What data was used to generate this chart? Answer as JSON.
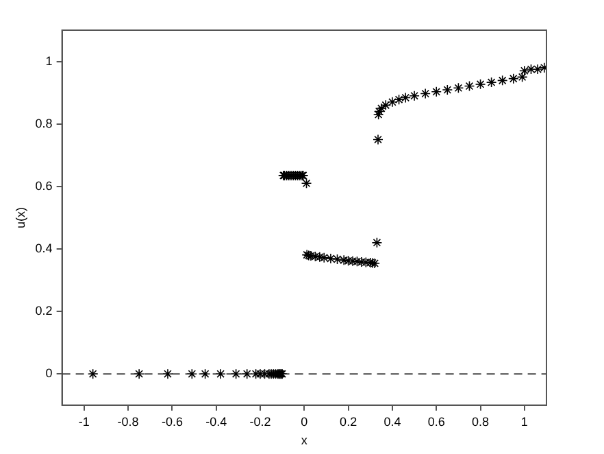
{
  "chart_data": {
    "type": "scatter",
    "xlabel": "x",
    "ylabel": "u(x)",
    "marker": "cross",
    "grid": false,
    "legend": false,
    "xlim": [
      -1.1,
      1.1
    ],
    "ylim": [
      -0.1,
      1.1
    ],
    "xticks": [
      -1,
      -0.8,
      -0.6,
      -0.4,
      -0.2,
      0,
      0.2,
      0.4,
      0.6,
      0.8,
      1
    ],
    "yticks": [
      0,
      0.2,
      0.4,
      0.6,
      0.8,
      1
    ],
    "ref_lines": [
      {
        "axis": "y",
        "value": 0,
        "color": "#000000",
        "line_style": "dashed"
      }
    ],
    "series": [
      {
        "color": "#000000",
        "x": [
          -0.96,
          -0.75,
          -0.62,
          -0.51,
          -0.45,
          -0.38,
          -0.31,
          -0.26,
          -0.22,
          -0.2,
          -0.18,
          -0.16,
          -0.15,
          -0.14,
          -0.13,
          -0.12,
          -0.115,
          -0.11,
          -0.105,
          -0.1,
          -0.095,
          -0.09,
          -0.08,
          -0.07,
          -0.06,
          -0.05,
          -0.04,
          -0.03,
          -0.02,
          -0.01,
          -0.005,
          0.01,
          0.012,
          0.02,
          0.03,
          0.05,
          0.07,
          0.09,
          0.12,
          0.15,
          0.18,
          0.2,
          0.22,
          0.24,
          0.26,
          0.28,
          0.3,
          0.31,
          0.32,
          0.33,
          0.335,
          0.337,
          0.34,
          0.35,
          0.37,
          0.4,
          0.43,
          0.46,
          0.5,
          0.55,
          0.6,
          0.65,
          0.7,
          0.75,
          0.8,
          0.85,
          0.9,
          0.95,
          0.99,
          1.0,
          1.03,
          1.06,
          1.09
        ],
        "values": [
          0,
          0,
          0,
          0,
          0,
          0,
          0,
          0,
          0,
          0,
          0,
          0,
          0,
          0,
          0,
          0,
          0,
          0,
          0,
          0,
          0.635,
          0.635,
          0.635,
          0.635,
          0.635,
          0.635,
          0.635,
          0.635,
          0.635,
          0.635,
          0.635,
          0.61,
          0.381,
          0.379,
          0.378,
          0.376,
          0.374,
          0.372,
          0.369,
          0.367,
          0.364,
          0.362,
          0.361,
          0.36,
          0.358,
          0.357,
          0.356,
          0.355,
          0.354,
          0.42,
          0.75,
          0.83,
          0.84,
          0.85,
          0.86,
          0.87,
          0.878,
          0.884,
          0.89,
          0.897,
          0.903,
          0.909,
          0.915,
          0.921,
          0.927,
          0.933,
          0.939,
          0.945,
          0.95,
          0.97,
          0.975,
          0.975,
          0.98
        ]
      }
    ]
  }
}
